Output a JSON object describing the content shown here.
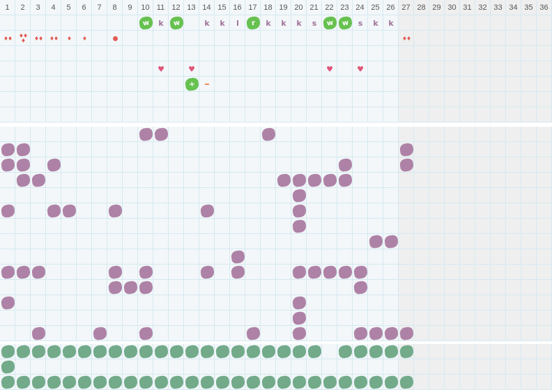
{
  "header": {
    "columns": [
      "1",
      "2",
      "3",
      "4",
      "5",
      "6",
      "7",
      "8",
      "9",
      "10",
      "11",
      "12",
      "13",
      "14",
      "15",
      "16",
      "17",
      "18",
      "19",
      "20",
      "21",
      "22",
      "23",
      "24",
      "25",
      "26",
      "27",
      "28",
      "29",
      "30",
      "31",
      "32",
      "33",
      "34",
      "35",
      "36"
    ],
    "shaded_from_column": 27
  },
  "colors": {
    "grid_line": "#d5e9f2",
    "cell_bg": "#f3f7f9",
    "shaded_bg": "#efefef",
    "green_blob": "#67c150",
    "purple_blob": "#ae82a6",
    "teal_blob": "#72aa8a",
    "letter": "#a0739a",
    "drop": "#e25a52",
    "heart": "#e0557a",
    "minus": "#f08a5a"
  },
  "sections": [
    {
      "rows": 7,
      "marks": [
        {
          "row": 0,
          "col": 10,
          "type": "green-blob",
          "label": "w"
        },
        {
          "row": 0,
          "col": 11,
          "type": "letter",
          "label": "k"
        },
        {
          "row": 0,
          "col": 12,
          "type": "green-blob",
          "label": "w"
        },
        {
          "row": 0,
          "col": 14,
          "type": "letter",
          "label": "k"
        },
        {
          "row": 0,
          "col": 15,
          "type": "letter",
          "label": "k"
        },
        {
          "row": 0,
          "col": 16,
          "type": "letter",
          "label": "l"
        },
        {
          "row": 0,
          "col": 17,
          "type": "green-blob",
          "label": "r"
        },
        {
          "row": 0,
          "col": 18,
          "type": "letter",
          "label": "k"
        },
        {
          "row": 0,
          "col": 19,
          "type": "letter",
          "label": "k"
        },
        {
          "row": 0,
          "col": 20,
          "type": "letter",
          "label": "k"
        },
        {
          "row": 0,
          "col": 21,
          "type": "letter",
          "label": "s"
        },
        {
          "row": 0,
          "col": 22,
          "type": "green-blob",
          "label": "w"
        },
        {
          "row": 0,
          "col": 23,
          "type": "green-blob",
          "label": "w"
        },
        {
          "row": 0,
          "col": 24,
          "type": "letter",
          "label": "s"
        },
        {
          "row": 0,
          "col": 25,
          "type": "letter",
          "label": "k"
        },
        {
          "row": 0,
          "col": 26,
          "type": "letter",
          "label": "k"
        },
        {
          "row": 1,
          "col": 1,
          "type": "drops",
          "count": 2
        },
        {
          "row": 1,
          "col": 2,
          "type": "drops",
          "count": 3
        },
        {
          "row": 1,
          "col": 3,
          "type": "drops",
          "count": 2
        },
        {
          "row": 1,
          "col": 4,
          "type": "drops",
          "count": 2
        },
        {
          "row": 1,
          "col": 5,
          "type": "drops",
          "count": 1
        },
        {
          "row": 1,
          "col": 6,
          "type": "drops",
          "count": 1
        },
        {
          "row": 1,
          "col": 8,
          "type": "dot"
        },
        {
          "row": 1,
          "col": 27,
          "type": "drops",
          "count": 2
        },
        {
          "row": 3,
          "col": 11,
          "type": "heart"
        },
        {
          "row": 3,
          "col": 13,
          "type": "heart"
        },
        {
          "row": 3,
          "col": 22,
          "type": "heart"
        },
        {
          "row": 3,
          "col": 24,
          "type": "heart"
        },
        {
          "row": 4,
          "col": 13,
          "type": "green-blob",
          "label": "+"
        },
        {
          "row": 4,
          "col": 14,
          "type": "minus"
        }
      ]
    },
    {
      "rows": 14,
      "blob_color": "purple",
      "filled": [
        [
          10,
          11,
          18
        ],
        [
          1,
          2,
          27
        ],
        [
          1,
          2,
          4,
          23,
          27
        ],
        [
          2,
          3,
          19,
          20,
          21,
          22,
          23
        ],
        [
          20
        ],
        [
          1,
          4,
          5,
          8,
          14,
          20
        ],
        [
          20
        ],
        [
          25,
          26
        ],
        [
          16
        ],
        [
          1,
          2,
          3,
          8,
          10,
          14,
          16,
          20,
          21,
          22,
          23,
          24
        ],
        [
          8,
          9,
          10,
          24
        ],
        [
          1,
          20
        ],
        [
          20
        ],
        [
          3,
          7,
          10,
          17,
          20,
          24,
          25,
          26,
          27
        ]
      ]
    },
    {
      "rows": 3,
      "blob_color": "teal",
      "filled": [
        [
          1,
          2,
          3,
          4,
          5,
          6,
          7,
          8,
          9,
          10,
          11,
          12,
          13,
          14,
          15,
          16,
          17,
          18,
          19,
          20,
          21,
          23,
          24,
          25,
          26,
          27
        ],
        [
          1
        ],
        [
          1,
          2,
          3,
          4,
          5,
          6,
          7,
          8,
          9,
          10,
          11,
          12,
          13,
          14,
          15,
          16,
          17,
          18,
          19,
          20,
          21,
          22,
          23,
          24,
          25,
          26,
          27
        ]
      ]
    }
  ]
}
